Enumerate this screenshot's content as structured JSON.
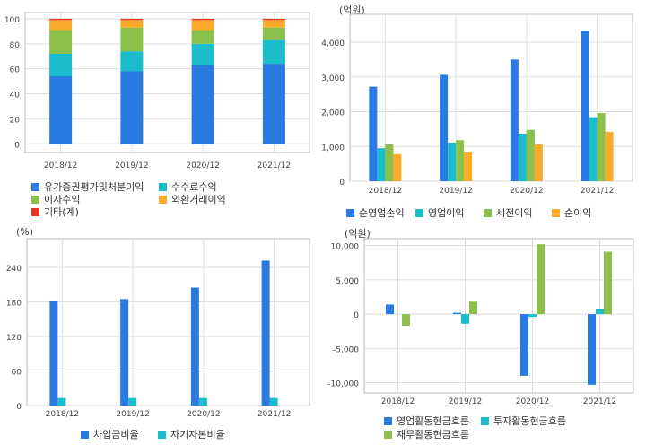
{
  "colors": {
    "blue": "#2a7ae2",
    "teal": "#1bbccc",
    "green": "#8cc04a",
    "orange": "#fbaa2c",
    "red": "#e53524",
    "grid": "#dddddd",
    "frame": "#bbbbbb"
  },
  "chart_data": [
    {
      "id": "revenue_mix",
      "type": "bar",
      "stacked": true,
      "categories": [
        "2018/12",
        "2019/12",
        "2020/12",
        "2021/12"
      ],
      "unit": "",
      "ylim": [
        -7,
        105
      ],
      "yticks": [
        0,
        20,
        40,
        60,
        80,
        100
      ],
      "ytick_labels": [
        "0",
        "20",
        "40",
        "60",
        "80",
        "100"
      ],
      "grid": true,
      "legend_position": "bottom",
      "series": [
        {
          "name": "유가증권평가및처분이익",
          "color": "#2a7ae2",
          "values": [
            54,
            58,
            63,
            64
          ]
        },
        {
          "name": "수수료수익",
          "color": "#1bbccc",
          "values": [
            18,
            16,
            17,
            19
          ]
        },
        {
          "name": "이자수익",
          "color": "#8cc04a",
          "values": [
            19,
            19,
            11,
            10
          ]
        },
        {
          "name": "외환거래이익",
          "color": "#fbaa2c",
          "values": [
            8,
            6,
            8,
            6
          ]
        },
        {
          "name": "기타(계)",
          "color": "#e53524",
          "values": [
            1,
            1,
            1,
            1
          ]
        }
      ]
    },
    {
      "id": "profits",
      "type": "bar",
      "stacked": false,
      "categories": [
        "2018/12",
        "2019/12",
        "2020/12",
        "2021/12"
      ],
      "unit": "(억원)",
      "ylim": [
        0,
        4800
      ],
      "yticks": [
        0,
        1000,
        2000,
        3000,
        4000
      ],
      "ytick_labels": [
        "0",
        "1,000",
        "2,000",
        "3,000",
        "4,000"
      ],
      "grid": true,
      "legend_position": "bottom",
      "series": [
        {
          "name": "순영업손익",
          "color": "#2a7ae2",
          "values": [
            2720,
            3060,
            3500,
            4330
          ]
        },
        {
          "name": "영업이익",
          "color": "#1bbccc",
          "values": [
            950,
            1110,
            1370,
            1840
          ]
        },
        {
          "name": "세전이익",
          "color": "#8cc04a",
          "values": [
            1060,
            1180,
            1480,
            1960
          ]
        },
        {
          "name": "순이익",
          "color": "#fbaa2c",
          "values": [
            780,
            850,
            1060,
            1420
          ]
        }
      ]
    },
    {
      "id": "ratios",
      "type": "bar",
      "stacked": false,
      "categories": [
        "2018/12",
        "2019/12",
        "2020/12",
        "2021/12"
      ],
      "unit": "(%)",
      "ylim": [
        0,
        290
      ],
      "yticks": [
        0,
        60,
        120,
        180,
        240
      ],
      "ytick_labels": [
        "0",
        "60",
        "120",
        "180",
        "240"
      ],
      "grid": true,
      "legend_position": "bottom",
      "series": [
        {
          "name": "차입금비율",
          "color": "#2a7ae2",
          "values": [
            181,
            185,
            205,
            252
          ]
        },
        {
          "name": "자기자본비율",
          "color": "#1bbccc",
          "values": [
            13,
            13,
            13,
            13
          ]
        }
      ]
    },
    {
      "id": "cashflow",
      "type": "bar",
      "stacked": false,
      "categories": [
        "2018/12",
        "2019/12",
        "2020/12",
        "2021/12"
      ],
      "unit": "(억원)",
      "ylim": [
        -11500,
        11000
      ],
      "yticks": [
        -10000,
        -5000,
        0,
        5000,
        10000
      ],
      "ytick_labels": [
        "-10,000",
        "-5,000",
        "0",
        "5,000",
        "10,000"
      ],
      "grid": true,
      "legend_position": "bottom",
      "series": [
        {
          "name": "영업활동현금흐름",
          "color": "#2a7ae2",
          "values": [
            1400,
            200,
            -9000,
            -10300
          ]
        },
        {
          "name": "투자활동현금흐름",
          "color": "#1bbccc",
          "values": [
            0,
            -1400,
            -400,
            800
          ]
        },
        {
          "name": "재무활동현금흐름",
          "color": "#8cc04a",
          "values": [
            -1700,
            1800,
            10200,
            9100
          ]
        }
      ]
    }
  ]
}
